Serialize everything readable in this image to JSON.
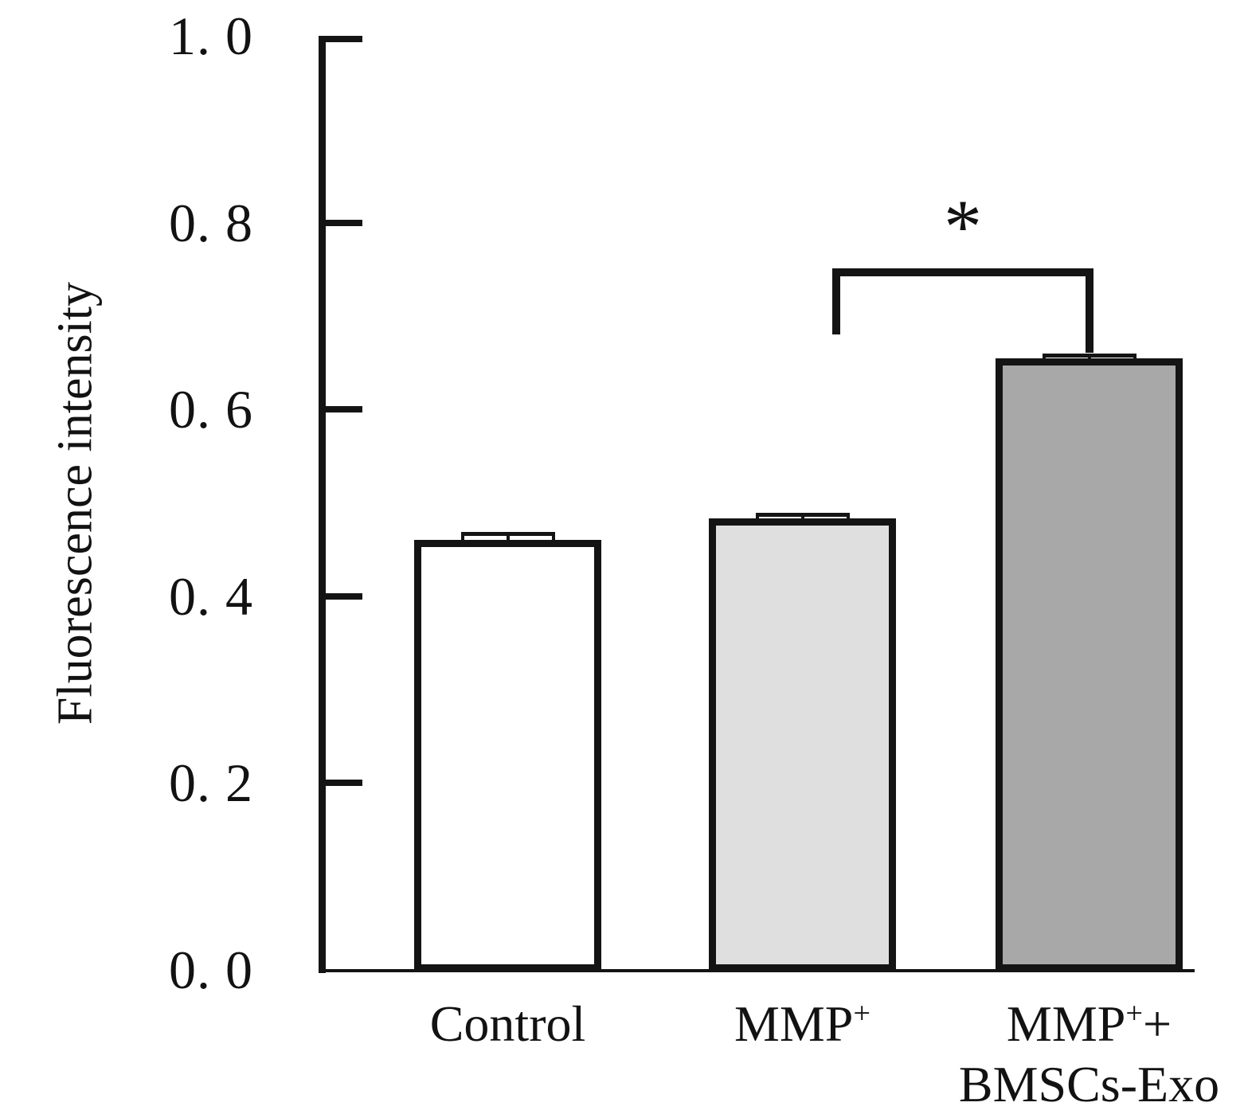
{
  "chart_data": {
    "type": "bar",
    "title": "",
    "xlabel": "",
    "ylabel": "Fluorescence intensity",
    "ylim": [
      0.0,
      1.0
    ],
    "grid": false,
    "legend": "none",
    "yticks": [
      {
        "value": 1.0,
        "label": "1. 0"
      },
      {
        "value": 0.8,
        "label": "0. 8"
      },
      {
        "value": 0.6,
        "label": "0. 6"
      },
      {
        "value": 0.4,
        "label": "0. 4"
      },
      {
        "value": 0.2,
        "label": "0. 2"
      },
      {
        "value": 0.0,
        "label": "0. 0"
      }
    ],
    "categories": [
      {
        "id": "control",
        "name": "Control",
        "lines": [
          [
            {
              "text": "Control"
            }
          ]
        ]
      },
      {
        "id": "mmp",
        "name": "MMP+",
        "lines": [
          [
            {
              "text": "MMP"
            },
            {
              "text": "+",
              "sup": true
            }
          ]
        ]
      },
      {
        "id": "mmp-bmscs-exo",
        "name": "MMP+ + BMSCs-Exo",
        "lines": [
          [
            {
              "text": "MMP"
            },
            {
              "text": "+",
              "sup": true
            },
            {
              "text": "+"
            }
          ],
          [
            {
              "text": "BMSCs-Exo"
            }
          ]
        ]
      }
    ],
    "values": [
      0.46,
      0.483,
      0.655
    ],
    "errors": [
      0.009,
      0.006,
      0.005
    ],
    "bar_colors": [
      "#ffffff",
      "#dfdfdf",
      "#a8a8a8"
    ],
    "axis_color": "#141414",
    "significance": {
      "label": "*",
      "from": "MMP+",
      "to": "MMP+ + BMSCs-Exo",
      "y": 0.751,
      "left_drop_to": 0.68,
      "right_drop_to": 0.661
    }
  }
}
